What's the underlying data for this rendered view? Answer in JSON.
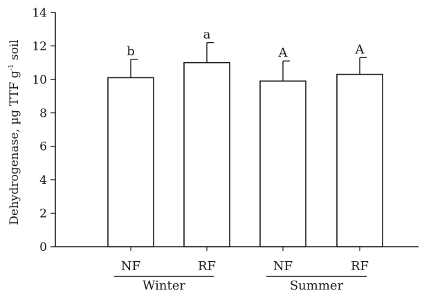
{
  "chart_data": {
    "type": "bar",
    "ylabel": {
      "main": "Dehydrogenase, µg TTF g",
      "superscript": "-1",
      "suffix": " soil"
    },
    "ylim": [
      0,
      14
    ],
    "yticks": [
      0,
      2,
      4,
      6,
      8,
      10,
      12,
      14
    ],
    "categories": [
      "NF",
      "RF",
      "NF",
      "RF"
    ],
    "groups": [
      {
        "label": "Winter",
        "categories": [
          0,
          1
        ]
      },
      {
        "label": "Summer",
        "categories": [
          2,
          3
        ]
      }
    ],
    "values": [
      10.1,
      11.0,
      9.9,
      10.3
    ],
    "errors": [
      1.1,
      1.2,
      1.2,
      1.0
    ],
    "significance": [
      "b",
      "a",
      "A",
      "A"
    ],
    "grid": false,
    "colors": {
      "bar_fill": "#ffffff",
      "stroke": "#1a1a1a"
    }
  }
}
